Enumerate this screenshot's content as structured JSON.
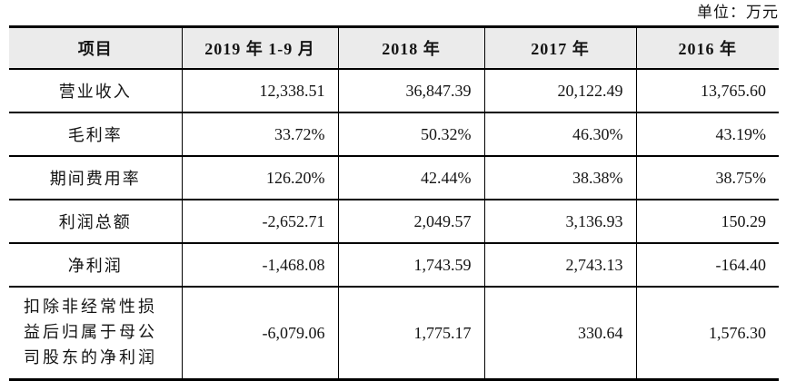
{
  "unit_label": "单位：万元",
  "colors": {
    "header_bg": "#ebebeb",
    "border": "#000000",
    "text": "#141414",
    "page_bg": "#ffffff"
  },
  "table": {
    "headers": [
      "项目",
      "2019 年 1-9 月",
      "2018 年",
      "2017 年",
      "2016 年"
    ],
    "rows": [
      {
        "label": "营业收入",
        "values": [
          "12,338.51",
          "36,847.39",
          "20,122.49",
          "13,765.60"
        ]
      },
      {
        "label": "毛利率",
        "values": [
          "33.72%",
          "50.32%",
          "46.30%",
          "43.19%"
        ]
      },
      {
        "label": "期间费用率",
        "values": [
          "126.20%",
          "42.44%",
          "38.38%",
          "38.75%"
        ]
      },
      {
        "label": "利润总额",
        "values": [
          "-2,652.71",
          "2,049.57",
          "3,136.93",
          "150.29"
        ]
      },
      {
        "label": "净利润",
        "values": [
          "-1,468.08",
          "1,743.59",
          "2,743.13",
          "-164.40"
        ]
      },
      {
        "label": "扣除非经常性损益后归属于母公司股东的净利润",
        "values": [
          "-6,079.06",
          "1,775.17",
          "330.64",
          "1,576.30"
        ]
      }
    ]
  }
}
